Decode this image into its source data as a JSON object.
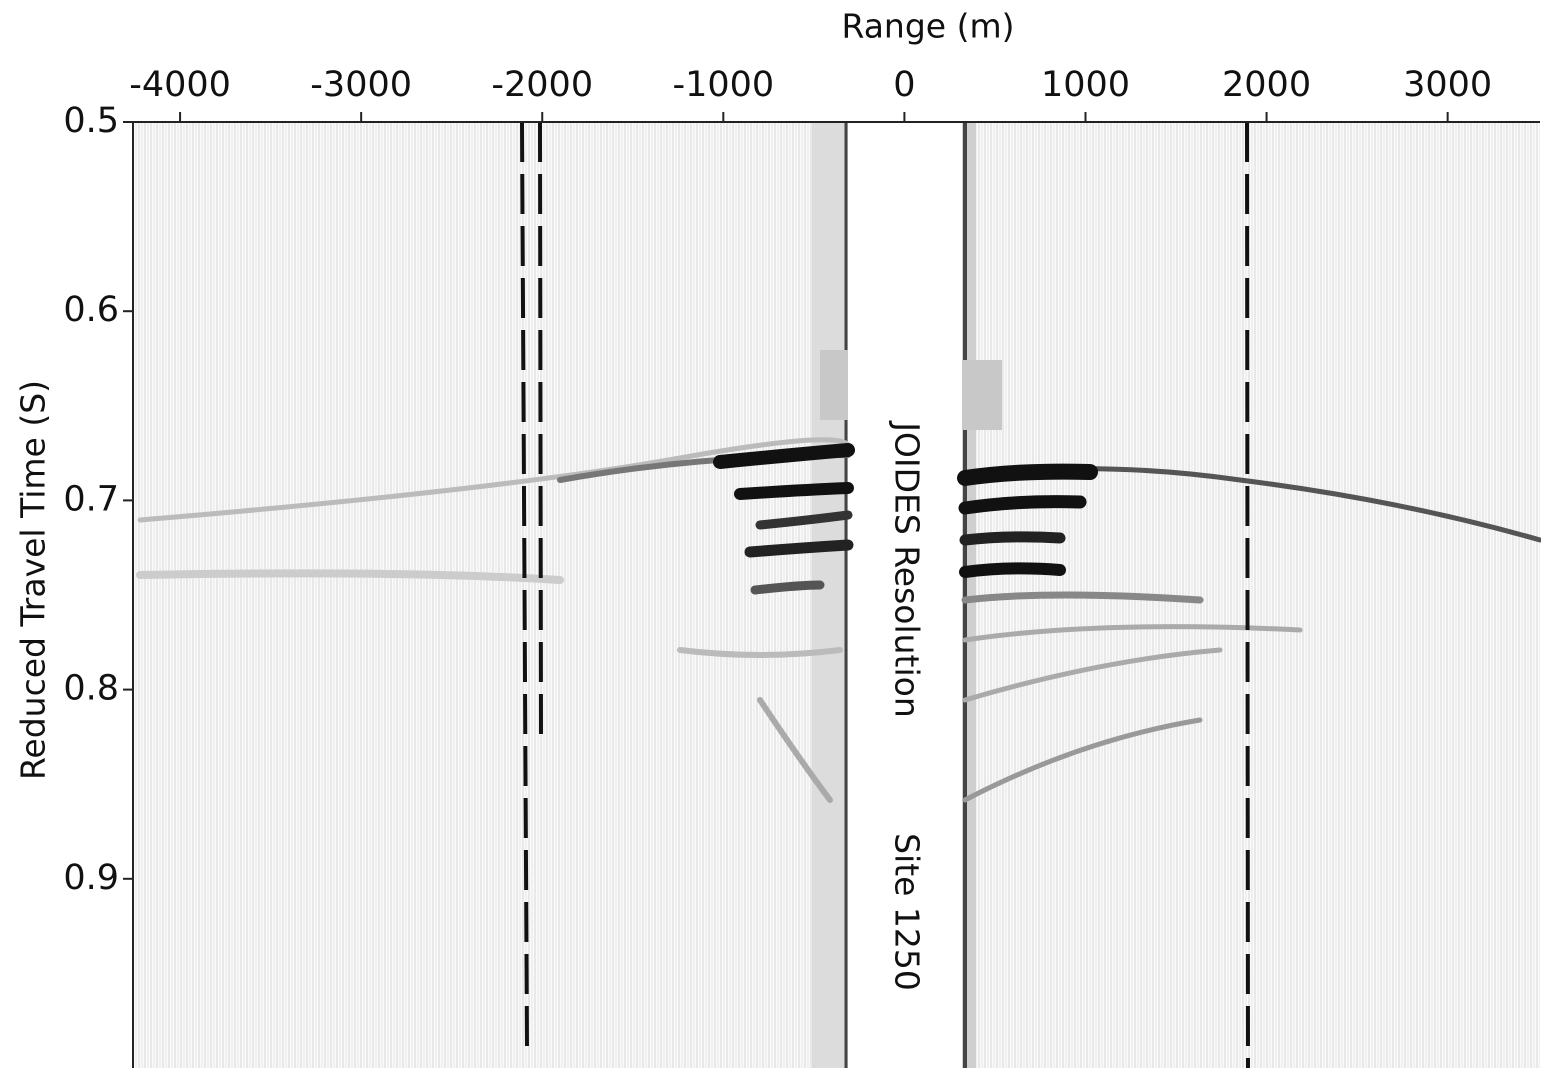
{
  "chart_data": {
    "type": "seismic",
    "x_label": "Range (m)",
    "y_label": "Reduced Travel Time (S)",
    "xlim": [
      -4260,
      3510
    ],
    "xticks": [
      -4000,
      -3000,
      -2000,
      -1000,
      0,
      1000,
      2000,
      3000
    ],
    "ylim": [
      0.5,
      1.0
    ],
    "y_inverted": true,
    "yticks": [
      0.5,
      0.6,
      0.7,
      0.8,
      0.9
    ],
    "annotations": [
      "JOIDES Resolution",
      "Site 1250"
    ]
  }
}
